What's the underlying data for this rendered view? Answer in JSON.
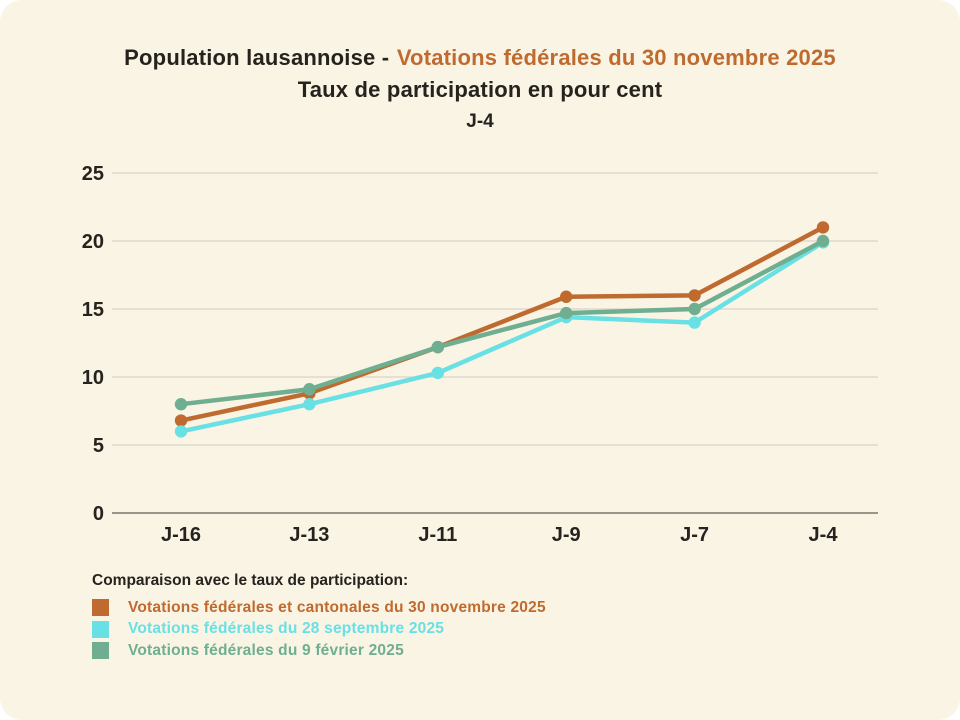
{
  "header": {
    "title_dark": "Population lausannoise -",
    "title_orange": "Votations fédérales du 30 novembre 2025",
    "subtitle": "Taux de participation en pour cent",
    "day_label": "J-4"
  },
  "chart_data": {
    "type": "line",
    "title": "Population lausannoise - Votations fédérales du 30 novembre 2025",
    "subtitle": "Taux de participation en pour cent",
    "annotation": "J-4",
    "categories": [
      "J-16",
      "J-13",
      "J-11",
      "J-9",
      "J-7",
      "J-4"
    ],
    "series": [
      {
        "name": "Votations fédérales et cantonales du 30 novembre 2025",
        "color": "#BF6B2F",
        "values": [
          6.8,
          8.8,
          12.2,
          15.9,
          16.0,
          21.0
        ]
      },
      {
        "name": "Votations fédérales du 28 septembre 2025",
        "color": "#68E0E4",
        "values": [
          6.0,
          8.0,
          10.3,
          14.4,
          14.0,
          19.9
        ]
      },
      {
        "name": "Votations fédérales du 9 février 2025",
        "color": "#6FAE90",
        "values": [
          8.0,
          9.1,
          12.2,
          14.7,
          15.0,
          20.0
        ]
      }
    ],
    "ylim": [
      0,
      25
    ],
    "yticks": [
      0,
      5,
      10,
      15,
      20,
      25
    ],
    "grid": true,
    "legend_position": "bottom-left",
    "xlabel": "",
    "ylabel": ""
  },
  "legend": {
    "title": "Comparaison avec le taux de participation:"
  },
  "colors": {
    "page": "#FFFFFF",
    "background": "#FAF4E5",
    "text": "#26231E",
    "accent_orange": "#BF6B2F",
    "grid": "#DEDACD",
    "axis": "#9A958A"
  }
}
